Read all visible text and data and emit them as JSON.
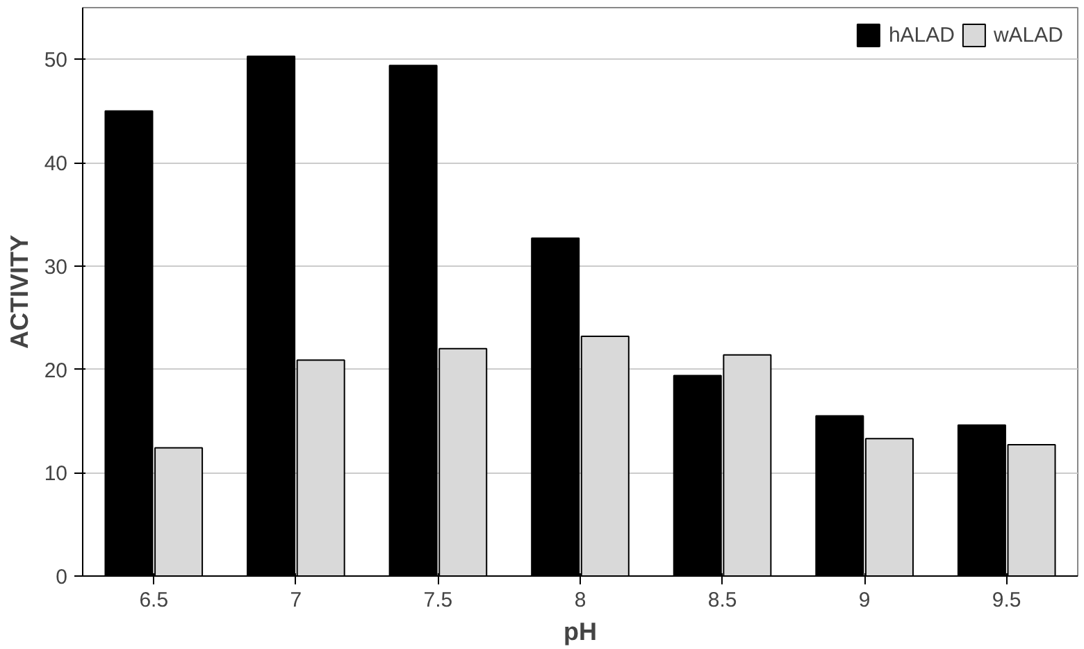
{
  "chart_data": {
    "type": "bar",
    "xlabel": "pH",
    "ylabel": "ACTIVITY",
    "categories": [
      "6.5",
      "7",
      "7.5",
      "8",
      "8.5",
      "9",
      "9.5"
    ],
    "series": [
      {
        "name": "hALAD",
        "color": "#000000",
        "values": [
          45.0,
          50.3,
          49.4,
          32.7,
          19.4,
          15.5,
          14.6
        ]
      },
      {
        "name": "wALAD",
        "color": "#d9d9d9",
        "values": [
          12.4,
          20.9,
          22.0,
          23.2,
          21.4,
          13.3,
          12.7
        ]
      }
    ],
    "ylim": [
      0,
      55
    ],
    "yticks": [
      0,
      10,
      20,
      30,
      40,
      50
    ],
    "grid": "y",
    "legend": "top right"
  }
}
